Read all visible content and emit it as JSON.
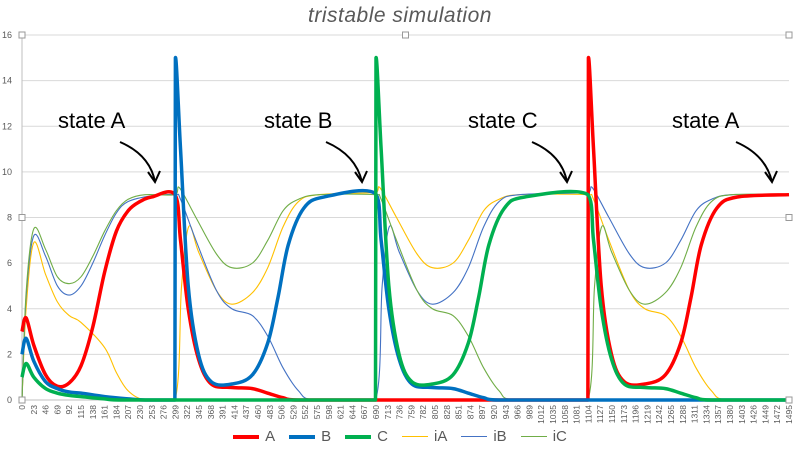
{
  "chart_data": {
    "type": "line",
    "title": "tristable simulation",
    "xlabel": "",
    "ylabel": "",
    "ylim": [
      0,
      16
    ],
    "xlim": [
      0,
      1495
    ],
    "y_ticks": [
      "0",
      "2",
      "4",
      "6",
      "8",
      "10",
      "12",
      "14",
      "16"
    ],
    "x_ticks": [
      "0",
      "23",
      "46",
      "69",
      "92",
      "115",
      "138",
      "161",
      "184",
      "207",
      "230",
      "253",
      "276",
      "299",
      "322",
      "345",
      "368",
      "391",
      "414",
      "437",
      "460",
      "483",
      "506",
      "529",
      "552",
      "575",
      "598",
      "621",
      "644",
      "667",
      "690",
      "713",
      "736",
      "759",
      "782",
      "805",
      "828",
      "851",
      "874",
      "897",
      "920",
      "943",
      "966",
      "989",
      "1012",
      "1035",
      "1058",
      "1081",
      "1104",
      "1127",
      "1150",
      "1173",
      "1196",
      "1219",
      "1242",
      "1265",
      "1288",
      "1311",
      "1334",
      "1357",
      "1380",
      "1403",
      "1426",
      "1449",
      "1472",
      "1495"
    ],
    "grid": "horizontal",
    "legend_position": "bottom",
    "annotations": [
      "state A",
      "state B",
      "state C",
      "state A"
    ],
    "series": [
      {
        "name": "A",
        "color": "#ff0000",
        "points": [
          [
            0,
            3
          ],
          [
            8,
            3.6
          ],
          [
            23,
            2.4
          ],
          [
            46,
            1.1
          ],
          [
            69,
            0.6
          ],
          [
            92,
            0.75
          ],
          [
            115,
            1.5
          ],
          [
            138,
            3.2
          ],
          [
            161,
            5.6
          ],
          [
            184,
            7.4
          ],
          [
            207,
            8.3
          ],
          [
            230,
            8.7
          ],
          [
            253,
            8.9
          ],
          [
            298,
            9
          ],
          [
            309,
            7
          ],
          [
            324,
            4
          ],
          [
            344,
            1.8
          ],
          [
            369,
            0.7
          ],
          [
            409,
            0.55
          ],
          [
            449,
            0.5
          ],
          [
            479,
            0.3
          ],
          [
            509,
            0.1
          ],
          [
            539,
            0
          ],
          [
            1103,
            0
          ],
          [
            1104,
            15
          ],
          [
            1114,
            11
          ],
          [
            1129,
            5
          ],
          [
            1149,
            2
          ],
          [
            1174,
            0.8
          ],
          [
            1214,
            0.7
          ],
          [
            1254,
            1.1
          ],
          [
            1284,
            2.5
          ],
          [
            1304,
            4.5
          ],
          [
            1324,
            6.8
          ],
          [
            1354,
            8.4
          ],
          [
            1394,
            8.9
          ],
          [
            1495,
            9
          ]
        ]
      },
      {
        "name": "B",
        "color": "#0070c0",
        "points": [
          [
            0,
            2
          ],
          [
            8,
            2.7
          ],
          [
            23,
            1.7
          ],
          [
            46,
            0.8
          ],
          [
            69,
            0.5
          ],
          [
            92,
            0.35
          ],
          [
            115,
            0.3
          ],
          [
            161,
            0.15
          ],
          [
            207,
            0.05
          ],
          [
            240,
            0
          ],
          [
            298,
            0
          ],
          [
            299,
            15
          ],
          [
            309,
            11
          ],
          [
            324,
            5
          ],
          [
            344,
            2
          ],
          [
            369,
            0.8
          ],
          [
            409,
            0.7
          ],
          [
            449,
            1.1
          ],
          [
            479,
            2.5
          ],
          [
            499,
            4.5
          ],
          [
            519,
            6.8
          ],
          [
            549,
            8.4
          ],
          [
            589,
            8.9
          ],
          [
            689,
            9.05
          ],
          [
            700,
            7
          ],
          [
            715,
            4
          ],
          [
            735,
            1.8
          ],
          [
            760,
            0.7
          ],
          [
            800,
            0.55
          ],
          [
            840,
            0.5
          ],
          [
            870,
            0.3
          ],
          [
            900,
            0.1
          ],
          [
            930,
            0
          ],
          [
            1495,
            0
          ]
        ]
      },
      {
        "name": "C",
        "color": "#00b050",
        "points": [
          [
            0,
            1
          ],
          [
            8,
            1.6
          ],
          [
            23,
            1
          ],
          [
            46,
            0.5
          ],
          [
            69,
            0.3
          ],
          [
            92,
            0.2
          ],
          [
            115,
            0.15
          ],
          [
            161,
            0.05
          ],
          [
            200,
            0
          ],
          [
            689,
            0
          ],
          [
            690,
            15
          ],
          [
            700,
            11
          ],
          [
            715,
            5
          ],
          [
            735,
            2
          ],
          [
            760,
            0.8
          ],
          [
            800,
            0.7
          ],
          [
            840,
            1.1
          ],
          [
            870,
            2.5
          ],
          [
            890,
            4.5
          ],
          [
            910,
            6.8
          ],
          [
            940,
            8.4
          ],
          [
            980,
            8.9
          ],
          [
            1103,
            9
          ],
          [
            1114,
            7
          ],
          [
            1129,
            4
          ],
          [
            1149,
            1.8
          ],
          [
            1174,
            0.7
          ],
          [
            1214,
            0.55
          ],
          [
            1254,
            0.5
          ],
          [
            1284,
            0.3
          ],
          [
            1314,
            0.1
          ],
          [
            1344,
            0
          ],
          [
            1495,
            0
          ]
        ]
      },
      {
        "name": "iA",
        "color": "#ffc000",
        "points": [
          [
            0,
            0
          ],
          [
            8,
            4
          ],
          [
            23,
            6.9
          ],
          [
            46,
            5.5
          ],
          [
            69,
            4.3
          ],
          [
            92,
            3.7
          ],
          [
            115,
            3.4
          ],
          [
            161,
            2.3
          ],
          [
            184,
            1.2
          ],
          [
            207,
            0.4
          ],
          [
            240,
            0
          ],
          [
            298,
            0
          ],
          [
            311,
            5
          ],
          [
            325,
            7.6
          ],
          [
            344,
            6.5
          ],
          [
            379,
            4.8
          ],
          [
            409,
            4.2
          ],
          [
            449,
            4.7
          ],
          [
            479,
            5.8
          ],
          [
            509,
            7.6
          ],
          [
            539,
            8.7
          ],
          [
            579,
            9
          ],
          [
            690,
            9.1
          ],
          [
            698,
            9.3
          ],
          [
            730,
            8
          ],
          [
            770,
            6.4
          ],
          [
            800,
            5.8
          ],
          [
            840,
            6
          ],
          [
            870,
            7
          ],
          [
            900,
            8.3
          ],
          [
            930,
            8.8
          ],
          [
            970,
            9
          ],
          [
            1104,
            9
          ],
          [
            1114,
            8.8
          ],
          [
            1144,
            7
          ],
          [
            1184,
            4.8
          ],
          [
            1214,
            4
          ],
          [
            1254,
            3.7
          ],
          [
            1284,
            2.8
          ],
          [
            1314,
            1.4
          ],
          [
            1344,
            0.4
          ],
          [
            1374,
            0
          ],
          [
            1495,
            0
          ]
        ]
      },
      {
        "name": "iB",
        "color": "#4472c4",
        "points": [
          [
            0,
            0
          ],
          [
            8,
            4.5
          ],
          [
            23,
            7.2
          ],
          [
            46,
            6.3
          ],
          [
            69,
            5
          ],
          [
            92,
            4.6
          ],
          [
            115,
            5
          ],
          [
            138,
            6
          ],
          [
            161,
            7.2
          ],
          [
            184,
            8.2
          ],
          [
            207,
            8.7
          ],
          [
            253,
            8.95
          ],
          [
            299,
            9
          ],
          [
            309,
            8.8
          ],
          [
            339,
            7
          ],
          [
            379,
            4.8
          ],
          [
            409,
            4
          ],
          [
            449,
            3.7
          ],
          [
            479,
            2.8
          ],
          [
            509,
            1.4
          ],
          [
            539,
            0.4
          ],
          [
            569,
            0
          ],
          [
            689,
            0
          ],
          [
            702,
            5
          ],
          [
            716,
            7.6
          ],
          [
            735,
            6.5
          ],
          [
            770,
            4.8
          ],
          [
            800,
            4.2
          ],
          [
            840,
            4.7
          ],
          [
            870,
            5.8
          ],
          [
            900,
            7.6
          ],
          [
            930,
            8.7
          ],
          [
            970,
            9
          ],
          [
            1104,
            9.1
          ],
          [
            1112,
            9.3
          ],
          [
            1144,
            8
          ],
          [
            1184,
            6.4
          ],
          [
            1214,
            5.8
          ],
          [
            1254,
            6
          ],
          [
            1284,
            7
          ],
          [
            1314,
            8.3
          ],
          [
            1344,
            8.8
          ],
          [
            1384,
            9
          ],
          [
            1495,
            9
          ]
        ]
      },
      {
        "name": "iC",
        "color": "#70ad47",
        "points": [
          [
            0,
            0
          ],
          [
            8,
            4.7
          ],
          [
            23,
            7.5
          ],
          [
            46,
            6.6
          ],
          [
            69,
            5.4
          ],
          [
            92,
            5.1
          ],
          [
            115,
            5.4
          ],
          [
            138,
            6.3
          ],
          [
            161,
            7.4
          ],
          [
            184,
            8.3
          ],
          [
            207,
            8.8
          ],
          [
            240,
            9
          ],
          [
            299,
            9
          ],
          [
            307,
            9.3
          ],
          [
            339,
            8
          ],
          [
            379,
            6.4
          ],
          [
            409,
            5.8
          ],
          [
            449,
            6
          ],
          [
            479,
            7
          ],
          [
            509,
            8.3
          ],
          [
            539,
            8.8
          ],
          [
            579,
            9
          ],
          [
            690,
            9
          ],
          [
            700,
            8.8
          ],
          [
            730,
            7
          ],
          [
            770,
            4.8
          ],
          [
            800,
            4
          ],
          [
            840,
            3.7
          ],
          [
            870,
            2.8
          ],
          [
            900,
            1.4
          ],
          [
            930,
            0.4
          ],
          [
            960,
            0
          ],
          [
            1103,
            0
          ],
          [
            1116,
            5
          ],
          [
            1130,
            7.6
          ],
          [
            1149,
            6.5
          ],
          [
            1184,
            4.8
          ],
          [
            1214,
            4.2
          ],
          [
            1254,
            4.7
          ],
          [
            1284,
            5.8
          ],
          [
            1314,
            7.6
          ],
          [
            1344,
            8.7
          ],
          [
            1384,
            9
          ],
          [
            1495,
            9
          ]
        ]
      }
    ]
  }
}
